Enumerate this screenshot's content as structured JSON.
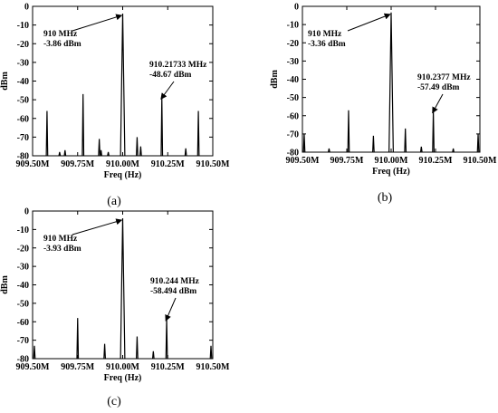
{
  "figure": {
    "captions": [
      "(a)",
      "(b)",
      "(c)"
    ]
  },
  "chart_data": [
    {
      "type": "line",
      "caption": "(a)",
      "xlabel": "Freq (Hz)",
      "ylabel": "dBm",
      "xlim": [
        909.5,
        910.5
      ],
      "ylim": [
        -80,
        0
      ],
      "x_ticks": [
        909.5,
        909.75,
        910.0,
        910.25,
        910.5
      ],
      "x_tick_labels": [
        "909.50M",
        "909.75M",
        "910.00M",
        "910.25M",
        "910.50M"
      ],
      "y_ticks": [
        0,
        -10,
        -20,
        -30,
        -40,
        -50,
        -60,
        -70,
        -80
      ],
      "y_tick_labels": [
        "0",
        "-10",
        "-20",
        "-30",
        "-40",
        "-50",
        "-60",
        "-70",
        "-80"
      ],
      "grid": false,
      "noise_floor": -80,
      "spikes": [
        {
          "x": 909.58,
          "y": -56
        },
        {
          "x": 909.65,
          "y": -78
        },
        {
          "x": 909.68,
          "y": -77
        },
        {
          "x": 909.78,
          "y": -47
        },
        {
          "x": 909.87,
          "y": -71
        },
        {
          "x": 909.88,
          "y": -77
        },
        {
          "x": 909.92,
          "y": -78
        },
        {
          "x": 910.0,
          "y": -3.86,
          "width": 0.012
        },
        {
          "x": 910.08,
          "y": -70
        },
        {
          "x": 910.1,
          "y": -75
        },
        {
          "x": 910.21733,
          "y": -48.67
        },
        {
          "x": 910.35,
          "y": -76
        },
        {
          "x": 910.42,
          "y": -56
        }
      ],
      "annotations": [
        {
          "lines": [
            "910 MHz",
            "-3.86 dBm"
          ],
          "x": 910.0,
          "y": -3.86
        },
        {
          "lines": [
            "910.21733 MHz",
            "-48.67 dBm"
          ],
          "x": 910.21733,
          "y": -48.67
        }
      ]
    },
    {
      "type": "line",
      "caption": "(b)",
      "xlabel": "Freq (Hz)",
      "ylabel": "dBm",
      "xlim": [
        909.5,
        910.5
      ],
      "ylim": [
        -80,
        0
      ],
      "x_ticks": [
        909.5,
        909.75,
        910.0,
        910.25,
        910.5
      ],
      "x_tick_labels": [
        "909.50M",
        "909.75M",
        "910.00M",
        "910.25M",
        "910.50M"
      ],
      "y_ticks": [
        0,
        -10,
        -20,
        -30,
        -40,
        -50,
        -60,
        -70,
        -80
      ],
      "y_tick_labels": [
        "0",
        "-10",
        "-20",
        "-30",
        "-40",
        "-50",
        "-60",
        "-70",
        "-80"
      ],
      "grid": false,
      "noise_floor": -80,
      "spikes": [
        {
          "x": 909.51,
          "y": -70
        },
        {
          "x": 909.65,
          "y": -78
        },
        {
          "x": 909.76,
          "y": -57
        },
        {
          "x": 909.9,
          "y": -71
        },
        {
          "x": 910.0,
          "y": -3.36,
          "width": 0.012
        },
        {
          "x": 910.08,
          "y": -67
        },
        {
          "x": 910.17,
          "y": -77
        },
        {
          "x": 910.2377,
          "y": -57.49
        },
        {
          "x": 910.35,
          "y": -78
        },
        {
          "x": 910.49,
          "y": -70
        }
      ],
      "annotations": [
        {
          "lines": [
            "910 MHz",
            "-3.36 dBm"
          ],
          "x": 910.0,
          "y": -3.36
        },
        {
          "lines": [
            "910.2377 MHz",
            "-57.49 dBm"
          ],
          "x": 910.2377,
          "y": -57.49
        }
      ]
    },
    {
      "type": "line",
      "caption": "(c)",
      "xlabel": "Freq (Hz)",
      "ylabel": "dBm",
      "xlim": [
        909.5,
        910.5
      ],
      "ylim": [
        -80,
        0
      ],
      "x_ticks": [
        909.5,
        909.75,
        910.0,
        910.25,
        910.5
      ],
      "x_tick_labels": [
        "909.50M",
        "909.75M",
        "910.00M",
        "910.25M",
        "910.50M"
      ],
      "y_ticks": [
        0,
        -10,
        -20,
        -30,
        -40,
        -50,
        -60,
        -70,
        -80
      ],
      "y_tick_labels": [
        "0",
        "-10",
        "-20",
        "-30",
        "-40",
        "-50",
        "-60",
        "-70",
        "-80"
      ],
      "grid": false,
      "noise_floor": -80,
      "spikes": [
        {
          "x": 909.51,
          "y": -73
        },
        {
          "x": 909.75,
          "y": -58
        },
        {
          "x": 909.9,
          "y": -72
        },
        {
          "x": 910.0,
          "y": -3.93,
          "width": 0.012
        },
        {
          "x": 910.08,
          "y": -68
        },
        {
          "x": 910.17,
          "y": -76
        },
        {
          "x": 910.244,
          "y": -58.494
        },
        {
          "x": 910.49,
          "y": -73
        }
      ],
      "annotations": [
        {
          "lines": [
            "910 MHz",
            "-3.93 dBm"
          ],
          "x": 910.0,
          "y": -3.93
        },
        {
          "lines": [
            "910.244 MHz",
            "-58.494 dBm"
          ],
          "x": 910.244,
          "y": -58.494
        }
      ]
    }
  ]
}
